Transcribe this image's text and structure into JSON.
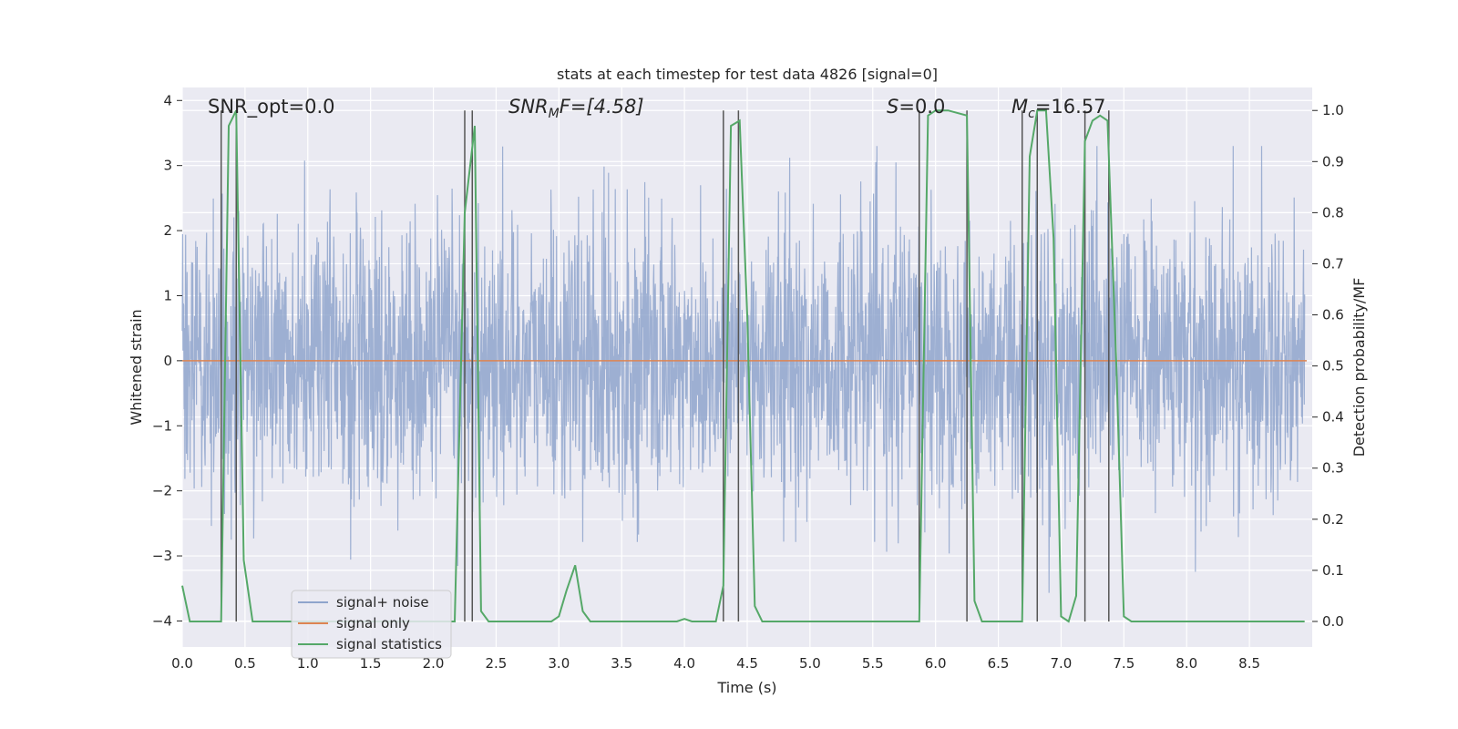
{
  "chart_data": {
    "type": "line",
    "title": "stats at each timestep for test data 4826 [signal=0]",
    "xlabel": "Time (s)",
    "ylabel": "Whitened strain",
    "ylabel_right": "Detection probability/MF",
    "xlim": [
      0.0,
      9.0
    ],
    "ylim": [
      -4.4,
      4.2
    ],
    "ylim_right": [
      -0.05,
      1.045
    ],
    "x_ticks": [
      0.0,
      0.5,
      1.0,
      1.5,
      2.0,
      2.5,
      3.0,
      3.5,
      4.0,
      4.5,
      5.0,
      5.5,
      6.0,
      6.5,
      7.0,
      7.5,
      8.0,
      8.5
    ],
    "x_tick_labels": [
      "0.0",
      "0.5",
      "1.0",
      "1.5",
      "2.0",
      "2.5",
      "3.0",
      "3.5",
      "4.0",
      "4.5",
      "5.0",
      "5.5",
      "6.0",
      "6.5",
      "7.0",
      "7.5",
      "8.0",
      "8.5"
    ],
    "y_ticks": [
      4,
      3,
      2,
      1,
      0,
      -1,
      -2,
      -3,
      -4
    ],
    "y_tick_labels": [
      "4",
      "3",
      "2",
      "1",
      "0",
      "−1",
      "−2",
      "−3",
      "−4"
    ],
    "y_right_ticks": [
      1.0,
      0.9,
      0.8,
      0.7,
      0.6,
      0.5,
      0.4,
      0.3,
      0.2,
      0.1,
      0.0
    ],
    "y_right_tick_labels": [
      "1.0",
      "0.9",
      "0.8",
      "0.7",
      "0.6",
      "0.5",
      "0.4",
      "0.3",
      "0.2",
      "0.1",
      "0.0"
    ],
    "grid": true,
    "legend_position": "lower-left",
    "annotations": {
      "snr_opt": "SNR_opt=0.0",
      "snr_mf": "SNR",
      "snr_mf_sub": "M",
      "snr_mf_rest": "F=[4.58]",
      "s": "S",
      "s_rest": "=0.0",
      "mc": "M",
      "mc_sub": "c",
      "mc_rest": "=16.57"
    },
    "series": [
      {
        "name": "signal+ noise",
        "color": "#8fa5cc",
        "axis": "left",
        "description_values": "whitened noise, approx. gaussian, range about -3.6 to 3.3"
      },
      {
        "name": "signal only",
        "color": "#dd8452",
        "axis": "left",
        "x": [
          0.0,
          9.0
        ],
        "y": [
          0.0,
          0.0
        ]
      },
      {
        "name": "signal statistics",
        "color": "#55a868",
        "axis": "right",
        "x": [
          0.0,
          0.06,
          0.16,
          0.26,
          0.31,
          0.37,
          0.43,
          0.49,
          0.56,
          0.76,
          1.2,
          2.0,
          2.17,
          2.25,
          2.33,
          2.38,
          2.44,
          2.94,
          3.0,
          3.06,
          3.13,
          3.19,
          3.25,
          3.31,
          3.94,
          4.0,
          4.06,
          4.25,
          4.31,
          4.37,
          4.44,
          4.5,
          4.56,
          4.62,
          5.0,
          5.8,
          5.87,
          5.94,
          6.0,
          6.1,
          6.25,
          6.31,
          6.37,
          6.62,
          6.69,
          6.75,
          6.81,
          6.88,
          6.94,
          7.0,
          7.06,
          7.12,
          7.19,
          7.25,
          7.31,
          7.37,
          7.44,
          7.5,
          7.56,
          8.0,
          8.94
        ],
        "y": [
          0.07,
          0.0,
          0.0,
          0.0,
          0.0,
          0.97,
          1.0,
          0.12,
          0.0,
          0.0,
          0.0,
          0.0,
          0.0,
          0.8,
          0.97,
          0.02,
          0.0,
          0.0,
          0.01,
          0.06,
          0.11,
          0.02,
          0.0,
          0.0,
          0.0,
          0.005,
          0.0,
          0.0,
          0.07,
          0.97,
          0.98,
          0.6,
          0.03,
          0.0,
          0.0,
          0.0,
          0.0,
          0.99,
          1.0,
          1.0,
          0.99,
          0.04,
          0.0,
          0.0,
          0.0,
          0.91,
          1.0,
          1.0,
          0.75,
          0.01,
          0.0,
          0.05,
          0.94,
          0.98,
          0.99,
          0.98,
          0.5,
          0.01,
          0.0,
          0.0,
          0.0
        ]
      }
    ],
    "vertical_markers_x": [
      0.31,
      0.43,
      2.25,
      2.31,
      4.31,
      4.43,
      5.87,
      6.25,
      6.69,
      6.81,
      7.19,
      7.38
    ]
  }
}
